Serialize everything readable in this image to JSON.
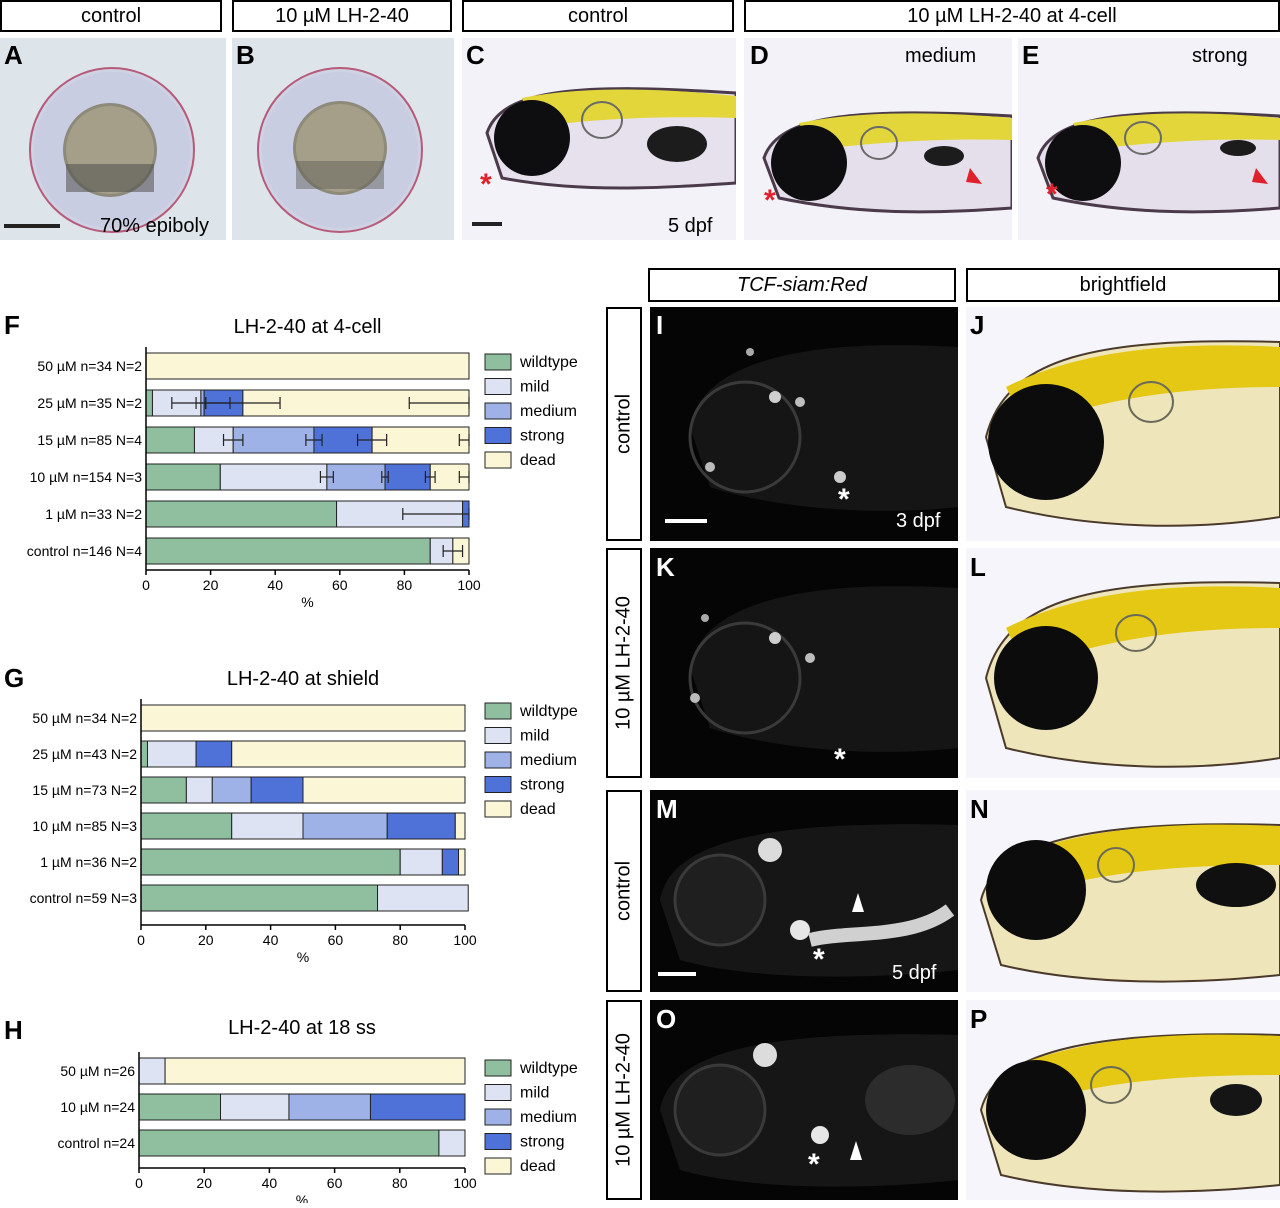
{
  "top_headers": [
    "control",
    "10 µM LH-2-40",
    "control",
    "10 µM LH-2-40 at 4-cell"
  ],
  "panel_letters": {
    "A": "A",
    "B": "B",
    "C": "C",
    "D": "D",
    "E": "E",
    "F": "F",
    "G": "G",
    "H": "H",
    "I": "I",
    "J": "J",
    "K": "K",
    "L": "L",
    "M": "M",
    "N": "N",
    "O": "O",
    "P": "P"
  },
  "top_notes": {
    "epiboly": "70% epiboly",
    "dpf5": "5 dpf",
    "medium": "medium",
    "strong": "strong"
  },
  "right_headers": {
    "fluor": "TCF-siam:Red",
    "bright": "brightfield"
  },
  "row_labels": [
    "control",
    "10 µM LH-2-40",
    "control",
    "10 µM LH-2-40"
  ],
  "fluor_notes": {
    "dpf3": "3 dpf",
    "dpf5": "5 dpf"
  },
  "asterisk": "*",
  "colors": {
    "wildtype": "#8fbf9e",
    "mild": "#dde3f3",
    "medium": "#9fb2e8",
    "strong": "#4f72d8",
    "dead": "#fbf6d6",
    "red": "#e0202a"
  },
  "chart_data": [
    {
      "type": "bar",
      "orientation": "horizontal",
      "stacked": true,
      "title": "LH-2-40 at 4-cell",
      "xlabel": "%",
      "xlim": [
        0,
        100
      ],
      "xticks": [
        0,
        20,
        40,
        60,
        80,
        100
      ],
      "categories": [
        "50 µM n=34 N=2",
        "25 µM n=35 N=2",
        "15 µM n=85 N=4",
        "10 µM n=154 N=3",
        "1 µM n=33 N=2",
        "control n=146 N=4"
      ],
      "series": [
        {
          "name": "wildtype",
          "values": [
            0,
            2,
            15,
            23,
            59,
            88
          ]
        },
        {
          "name": "mild",
          "values": [
            0,
            15,
            12,
            33,
            39,
            7
          ]
        },
        {
          "name": "medium",
          "values": [
            0,
            1,
            25,
            18,
            0,
            0
          ]
        },
        {
          "name": "strong",
          "values": [
            0,
            12,
            18,
            14,
            2,
            0
          ]
        },
        {
          "name": "dead",
          "values": [
            100,
            70,
            30,
            12,
            0,
            5
          ]
        }
      ],
      "errors": [
        [],
        [
          [
            3,
            "mild"
          ],
          [
            18,
            "mild"
          ],
          [
            23,
            "strong"
          ],
          [
            37,
            "dead"
          ]
        ],
        [
          [
            6,
            "mild"
          ],
          [
            5,
            "medium"
          ],
          [
            9,
            "strong"
          ],
          [
            6,
            "dead"
          ]
        ],
        [
          [
            4,
            "mild"
          ],
          [
            2,
            "medium"
          ],
          [
            3,
            "strong"
          ],
          [
            6,
            "dead"
          ]
        ],
        [
          [
            37,
            "mild"
          ]
        ],
        [
          [
            6,
            "mild"
          ]
        ]
      ],
      "legend": [
        "wildtype",
        "mild",
        "medium",
        "strong",
        "dead"
      ],
      "legend_position": "right",
      "grid": false
    },
    {
      "type": "bar",
      "orientation": "horizontal",
      "stacked": true,
      "title": "LH-2-40 at shield",
      "xlabel": "%",
      "xlim": [
        0,
        100
      ],
      "xticks": [
        0,
        20,
        40,
        60,
        80,
        100
      ],
      "categories": [
        "50 µM n=34 N=2",
        "25 µM n=43 N=2",
        "15 µM n=73 N=2",
        "10 µM n=85 N=3",
        "1 µM n=36 N=2",
        "control n=59 N=3"
      ],
      "series": [
        {
          "name": "wildtype",
          "values": [
            0,
            2,
            14,
            28,
            80,
            73
          ]
        },
        {
          "name": "mild",
          "values": [
            0,
            15,
            8,
            22,
            13,
            28
          ]
        },
        {
          "name": "medium",
          "values": [
            0,
            0,
            12,
            26,
            0,
            0
          ]
        },
        {
          "name": "strong",
          "values": [
            0,
            11,
            16,
            21,
            5,
            0
          ]
        },
        {
          "name": "dead",
          "values": [
            100,
            72,
            50,
            3,
            2,
            0
          ]
        }
      ],
      "legend": [
        "wildtype",
        "mild",
        "medium",
        "strong",
        "dead"
      ],
      "legend_position": "right",
      "grid": false
    },
    {
      "type": "bar",
      "orientation": "horizontal",
      "stacked": true,
      "title": "LH-2-40 at 18 ss",
      "xlabel": "%",
      "xlim": [
        0,
        100
      ],
      "xticks": [
        0,
        20,
        40,
        60,
        80,
        100
      ],
      "categories": [
        "50 µM n=26",
        "10 µM n=24",
        "control n=24"
      ],
      "series": [
        {
          "name": "wildtype",
          "values": [
            0,
            25,
            92
          ]
        },
        {
          "name": "mild",
          "values": [
            8,
            21,
            8
          ]
        },
        {
          "name": "medium",
          "values": [
            0,
            25,
            0
          ]
        },
        {
          "name": "strong",
          "values": [
            0,
            29,
            0
          ]
        },
        {
          "name": "dead",
          "values": [
            92,
            0,
            0
          ]
        }
      ],
      "legend": [
        "wildtype",
        "mild",
        "medium",
        "strong",
        "dead"
      ],
      "legend_position": "right",
      "grid": false
    }
  ]
}
